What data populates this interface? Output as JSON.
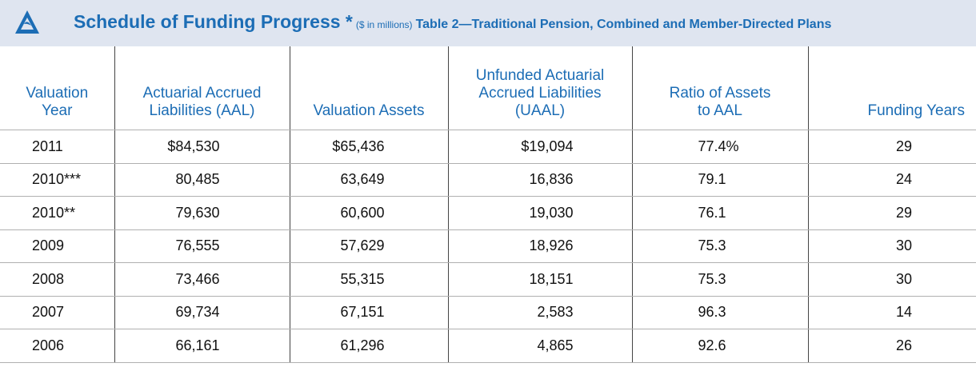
{
  "header": {
    "title": "Schedule of Funding Progress *",
    "units": "($ in millions)",
    "subtitle": "Table 2—Traditional Pension, Combined and Member-Directed Plans"
  },
  "table": {
    "columns": [
      [
        "Valuation",
        "Year"
      ],
      [
        "Actuarial Accrued",
        "Liabilities (AAL)"
      ],
      [
        "Valuation Assets"
      ],
      [
        "Unfunded Actuarial",
        "Accrued Liabilities",
        "(UAAL)"
      ],
      [
        "Ratio of Assets",
        "to AAL"
      ],
      [
        "Funding Years"
      ]
    ],
    "rows": [
      [
        "2011",
        "$84,530",
        "$65,436",
        "$19,094",
        "77.4%",
        "29"
      ],
      [
        "2010***",
        "80,485",
        "63,649",
        "16,836",
        "79.1",
        "24"
      ],
      [
        "2010**",
        "79,630",
        "60,600",
        "19,030",
        "76.1",
        "29"
      ],
      [
        "2009",
        "76,555",
        "57,629",
        "18,926",
        "75.3",
        "30"
      ],
      [
        "2008",
        "73,466",
        "55,315",
        "18,151",
        "75.3",
        "30"
      ],
      [
        "2007",
        "69,734",
        "67,151",
        "2,583",
        "96.3",
        "14"
      ],
      [
        "2006",
        "66,161",
        "61,296",
        "4,865",
        "92.6",
        "26"
      ]
    ]
  }
}
